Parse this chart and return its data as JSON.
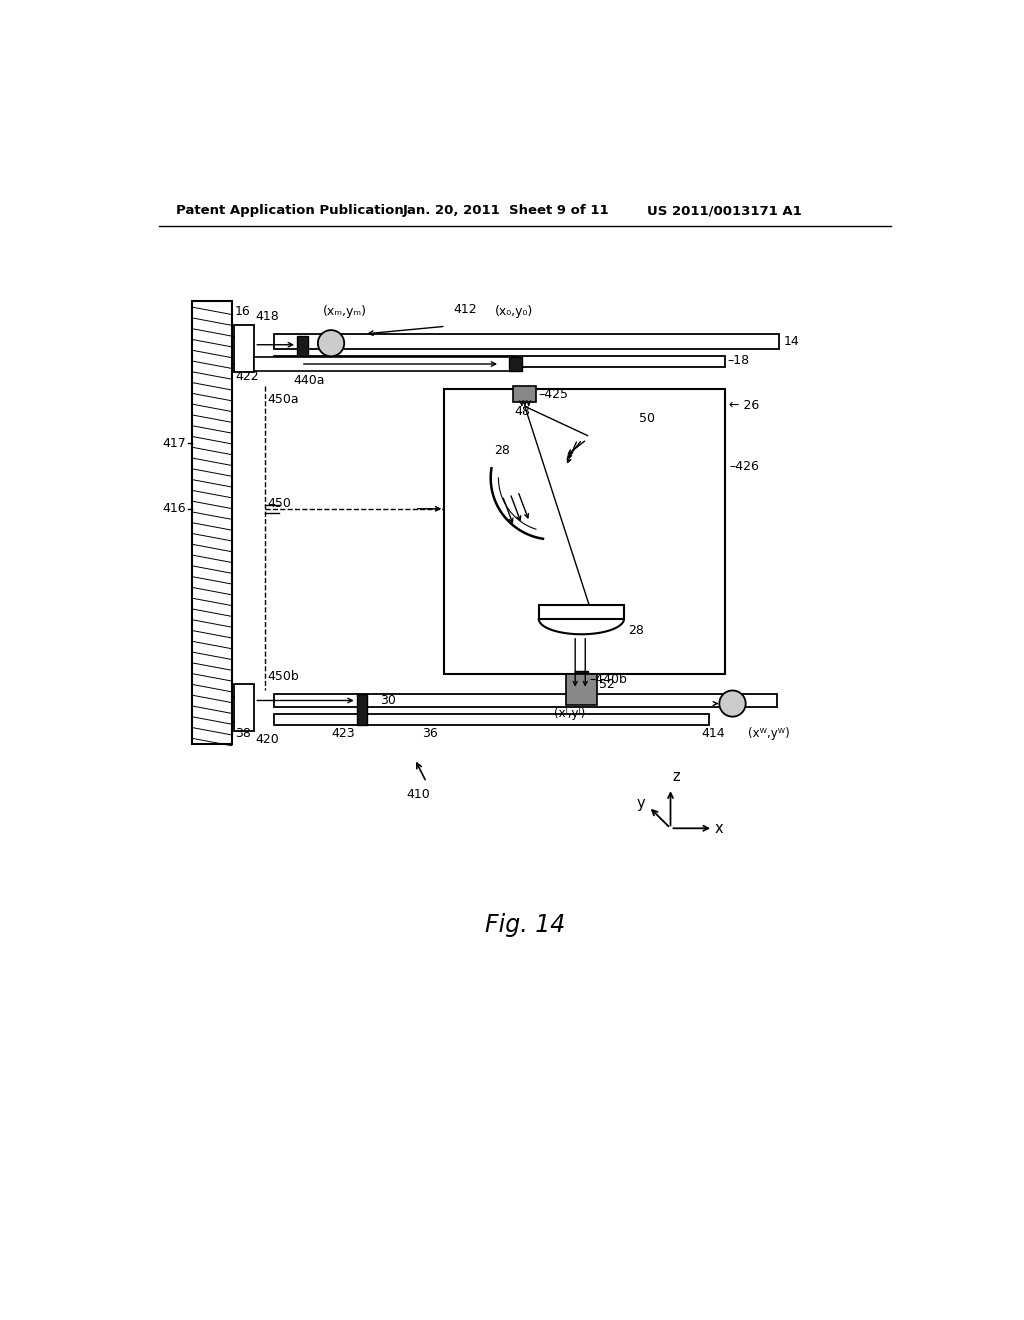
{
  "bg_color": "#ffffff",
  "header_left": "Patent Application Publication",
  "header_center": "Jan. 20, 2011  Sheet 9 of 11",
  "header_right": "US 2011/0013171 A1",
  "fig_label": "Fig. 14",
  "fig_number": "410"
}
